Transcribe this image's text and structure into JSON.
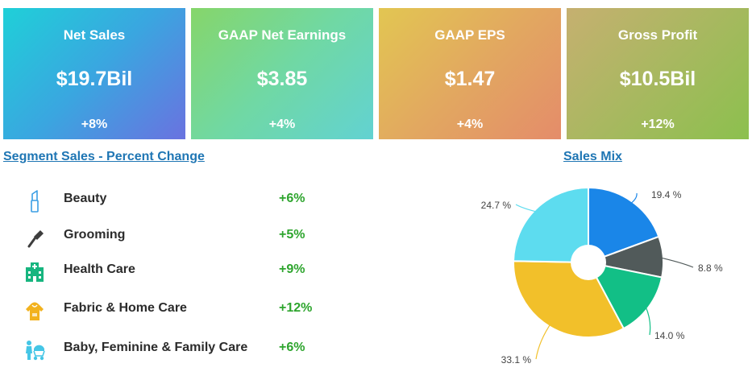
{
  "kpis": [
    {
      "title": "Net Sales",
      "value": "$19.7Bil",
      "change": "+8%"
    },
    {
      "title": "GAAP Net Earnings",
      "value": "$3.85",
      "change": "+4%"
    },
    {
      "title": "GAAP EPS",
      "value": "$1.47",
      "change": "+4%"
    },
    {
      "title": "Gross Profit",
      "value": "$10.5Bil",
      "change": "+12%"
    }
  ],
  "segment": {
    "title": "Segment Sales - Percent Change",
    "rows": [
      {
        "label": "Beauty",
        "change": "+6%",
        "icon": "lipstick-icon"
      },
      {
        "label": "Grooming",
        "change": "+5%",
        "icon": "razor-icon"
      },
      {
        "label": "Health Care",
        "change": "+9%",
        "icon": "hospital-icon"
      },
      {
        "label": "Fabric & Home Care",
        "change": "+12%",
        "icon": "hoodie-icon"
      },
      {
        "label": "Baby, Feminine & Family Care",
        "change": "+6%",
        "icon": "family-stroller-icon"
      }
    ]
  },
  "chart_data": {
    "type": "pie",
    "title": "Sales Mix",
    "donut": true,
    "values": [
      19.4,
      8.8,
      14.0,
      33.1,
      24.7
    ],
    "labels": [
      "19.4 %",
      "8.8 %",
      "14.0 %",
      "33.1 %",
      "24.7 %"
    ],
    "colors": [
      "#1a86e8",
      "#515a5a",
      "#12bf86",
      "#f2c02a",
      "#5ddcef"
    ]
  }
}
